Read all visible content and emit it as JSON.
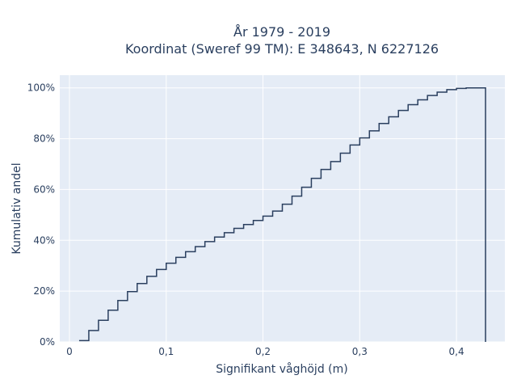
{
  "chart_data": {
    "type": "line",
    "line_shape": "step",
    "title_lines": [
      "År 1979 - 2019",
      "Koordinat (Sweref 99 TM): E 348643, N 6227126"
    ],
    "xlabel": "Signifikant våghöjd (m)",
    "ylabel": "Kumulativ andel",
    "xlim": [
      -0.01,
      0.45
    ],
    "ylim": [
      0,
      1.05
    ],
    "x_ticks": [
      0,
      0.1,
      0.2,
      0.3,
      0.4
    ],
    "x_tick_labels": [
      "0",
      "0,1",
      "0,2",
      "0,3",
      "0,4"
    ],
    "y_ticks": [
      0,
      0.2,
      0.4,
      0.6,
      0.8,
      1.0
    ],
    "y_tick_labels": [
      "0%",
      "20%",
      "40%",
      "60%",
      "80%",
      "100%"
    ],
    "grid": true,
    "colors": {
      "plot_bg": "#E5ECF6",
      "grid": "#ffffff",
      "line": "#2a3f5f",
      "text": "#2a3f5f"
    },
    "series": [
      {
        "x": [
          0.01,
          0.02,
          0.03,
          0.04,
          0.05,
          0.06,
          0.07,
          0.08,
          0.09,
          0.1,
          0.11,
          0.12,
          0.13,
          0.14,
          0.15,
          0.16,
          0.17,
          0.18,
          0.19,
          0.2,
          0.21,
          0.22,
          0.23,
          0.24,
          0.25,
          0.26,
          0.27,
          0.28,
          0.29,
          0.3,
          0.31,
          0.32,
          0.33,
          0.34,
          0.35,
          0.36,
          0.37,
          0.38,
          0.39,
          0.4,
          0.41,
          0.42,
          0.43
        ],
        "y": [
          0.005,
          0.045,
          0.085,
          0.125,
          0.163,
          0.198,
          0.23,
          0.258,
          0.285,
          0.31,
          0.333,
          0.355,
          0.375,
          0.395,
          0.413,
          0.43,
          0.447,
          0.462,
          0.478,
          0.495,
          0.515,
          0.542,
          0.574,
          0.609,
          0.644,
          0.679,
          0.71,
          0.743,
          0.775,
          0.803,
          0.831,
          0.86,
          0.886,
          0.911,
          0.934,
          0.953,
          0.97,
          0.983,
          0.993,
          0.998,
          1.0,
          1.0,
          0.0
        ]
      }
    ]
  }
}
